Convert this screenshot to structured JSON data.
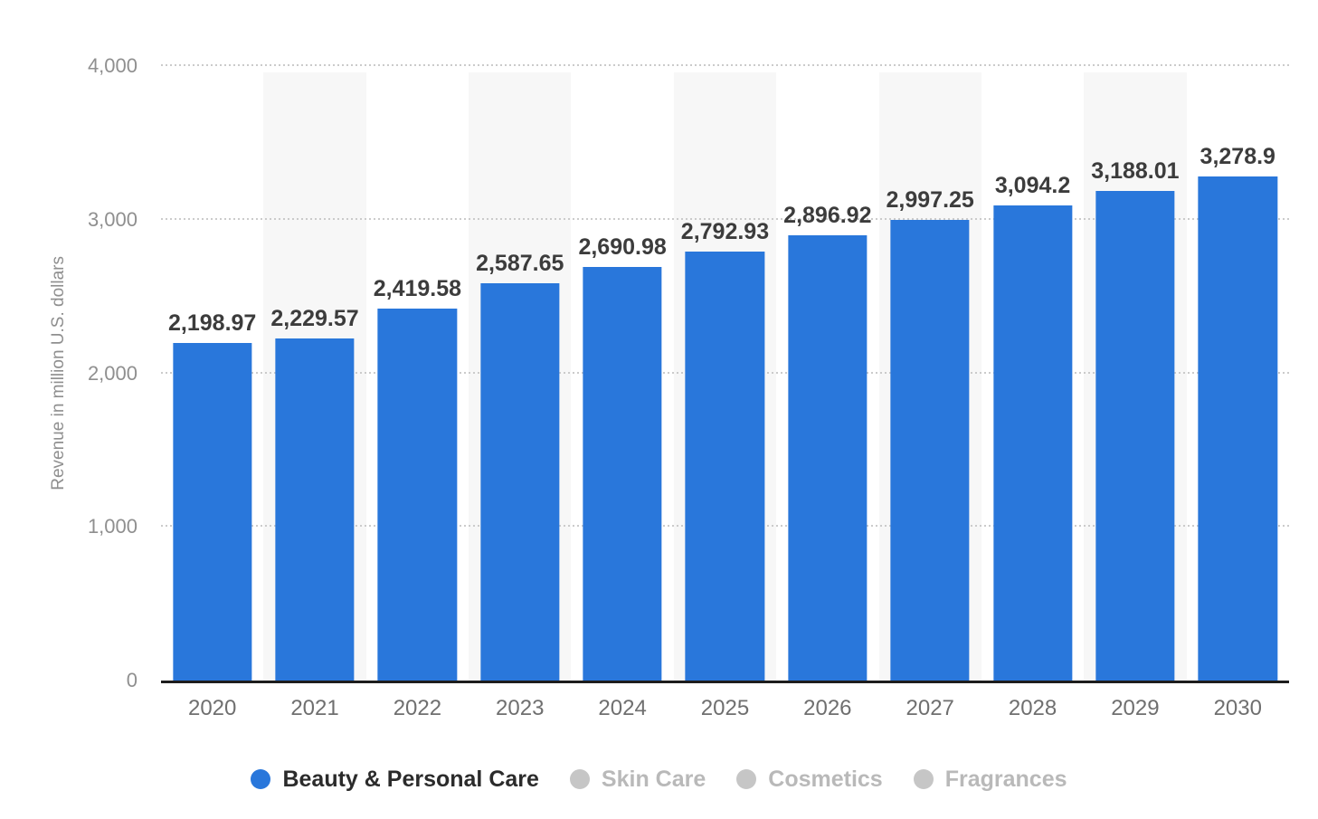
{
  "chart_data": {
    "type": "bar",
    "title": "",
    "xlabel": "",
    "ylabel": "Revenue in million U.S. dollars",
    "categories": [
      "2020",
      "2021",
      "2022",
      "2023",
      "2024",
      "2025",
      "2026",
      "2027",
      "2028",
      "2029",
      "2030"
    ],
    "series": [
      {
        "name": "Beauty & Personal Care",
        "values": [
          2198.97,
          2229.57,
          2419.58,
          2587.65,
          2690.98,
          2792.93,
          2896.92,
          2997.25,
          3094.2,
          3188.01,
          3278.9
        ],
        "labels": [
          "2,198.97",
          "2,229.57",
          "2,419.58",
          "2,587.65",
          "2,690.98",
          "2,792.93",
          "2,896.92",
          "2,997.25",
          "3,094.2",
          "3,188.01",
          "3,278.9"
        ]
      }
    ],
    "ylim": [
      0,
      4000
    ],
    "yticks": [
      "0",
      "1,000",
      "2,000",
      "3,000",
      "4,000"
    ],
    "ytick_values": [
      0,
      1000,
      2000,
      3000,
      4000
    ],
    "grid": "horizontal-dotted",
    "legend_position": "bottom",
    "legend": [
      {
        "label": "Beauty & Personal Care",
        "active": true
      },
      {
        "label": "Skin Care",
        "active": false
      },
      {
        "label": "Cosmetics",
        "active": false
      },
      {
        "label": "Fragrances",
        "active": false
      }
    ]
  },
  "colors": {
    "bar": "#2977db",
    "value_label": "#3c3c3c",
    "axis_text": "#8f8f8f",
    "x_tick_text": "#6f6f6f",
    "gridline": "#cbcbcb",
    "column_stripe": "#f7f7f7",
    "baseline": "#1d1d1d",
    "legend_active_text": "#2b2b2b",
    "legend_inactive_text": "#b9b9b9",
    "legend_inactive_dot": "#c6c6c6"
  }
}
